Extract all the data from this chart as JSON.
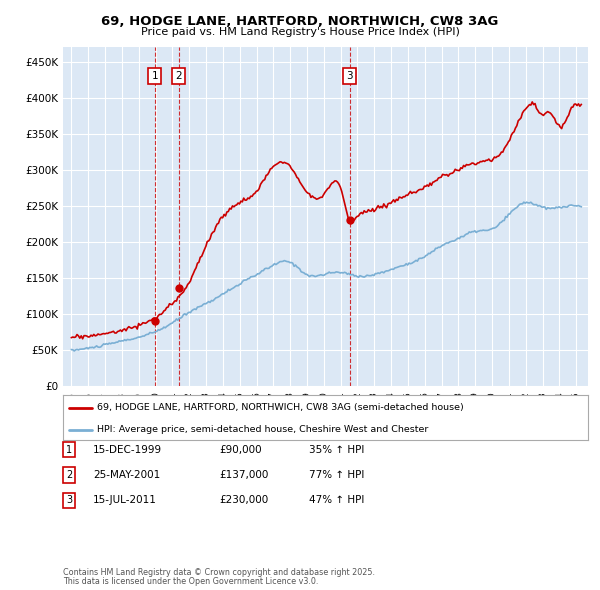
{
  "title1": "69, HODGE LANE, HARTFORD, NORTHWICH, CW8 3AG",
  "title2": "Price paid vs. HM Land Registry's House Price Index (HPI)",
  "ylim": [
    0,
    470000
  ],
  "yticks": [
    0,
    50000,
    100000,
    150000,
    200000,
    250000,
    300000,
    350000,
    400000,
    450000
  ],
  "ytick_labels": [
    "£0",
    "£50K",
    "£100K",
    "£150K",
    "£200K",
    "£250K",
    "£300K",
    "£350K",
    "£400K",
    "£450K"
  ],
  "xlim_start": 1994.5,
  "xlim_end": 2025.7,
  "xtick_years": [
    1995,
    1996,
    1997,
    1998,
    1999,
    2000,
    2001,
    2002,
    2003,
    2004,
    2005,
    2006,
    2007,
    2008,
    2009,
    2010,
    2011,
    2012,
    2013,
    2014,
    2015,
    2016,
    2017,
    2018,
    2019,
    2020,
    2021,
    2022,
    2023,
    2024,
    2025
  ],
  "legend1_label": "69, HODGE LANE, HARTFORD, NORTHWICH, CW8 3AG (semi-detached house)",
  "legend2_label": "HPI: Average price, semi-detached house, Cheshire West and Chester",
  "red_line_color": "#cc0000",
  "blue_line_color": "#7aafd4",
  "transaction_color": "#cc0000",
  "vline_color": "#cc0000",
  "highlight_color": "#dde8f5",
  "transactions": [
    {
      "date_num": 1999.96,
      "price": 90000,
      "label": "1",
      "hpi_pct": "35% ↑ HPI",
      "date_str": "15-DEC-1999",
      "price_str": "£90,000"
    },
    {
      "date_num": 2001.38,
      "price": 137000,
      "label": "2",
      "hpi_pct": "77% ↑ HPI",
      "date_str": "25-MAY-2001",
      "price_str": "£137,000"
    },
    {
      "date_num": 2011.54,
      "price": 230000,
      "label": "3",
      "hpi_pct": "47% ↑ HPI",
      "date_str": "15-JUL-2011",
      "price_str": "£230,000"
    }
  ],
  "footnote1": "Contains HM Land Registry data © Crown copyright and database right 2025.",
  "footnote2": "This data is licensed under the Open Government Licence v3.0.",
  "fig_bg_color": "#ffffff",
  "plot_bg_color": "#dce8f5",
  "grid_color": "#ffffff"
}
